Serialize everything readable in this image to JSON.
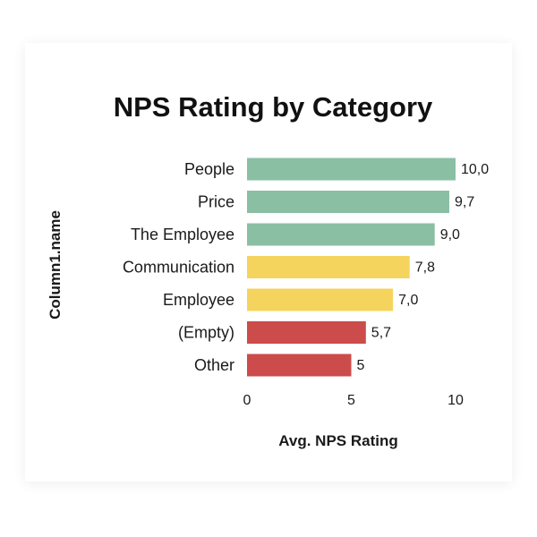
{
  "chart_data": {
    "type": "bar",
    "orientation": "horizontal",
    "title": "NPS Rating by Category",
    "xlabel": "Avg. NPS Rating",
    "ylabel": "Column1.name",
    "xlim": [
      0,
      10
    ],
    "xticks": [
      "0",
      "5",
      "10"
    ],
    "grid": false,
    "categories": [
      "People",
      "Price",
      "The Employee",
      "Communication",
      "Employee",
      "(Empty)",
      "Other"
    ],
    "values": [
      10.0,
      9.7,
      9.0,
      7.8,
      7.0,
      5.7,
      5.0
    ],
    "value_labels": [
      "10,0",
      "9,7",
      "9,0",
      "7,8",
      "7,0",
      "5,7",
      "5"
    ],
    "bar_colors": [
      "#8bbfa4",
      "#8bbfa4",
      "#8bbfa4",
      "#f5d45e",
      "#f5d45e",
      "#cc4b4b",
      "#cc4b4b"
    ]
  }
}
